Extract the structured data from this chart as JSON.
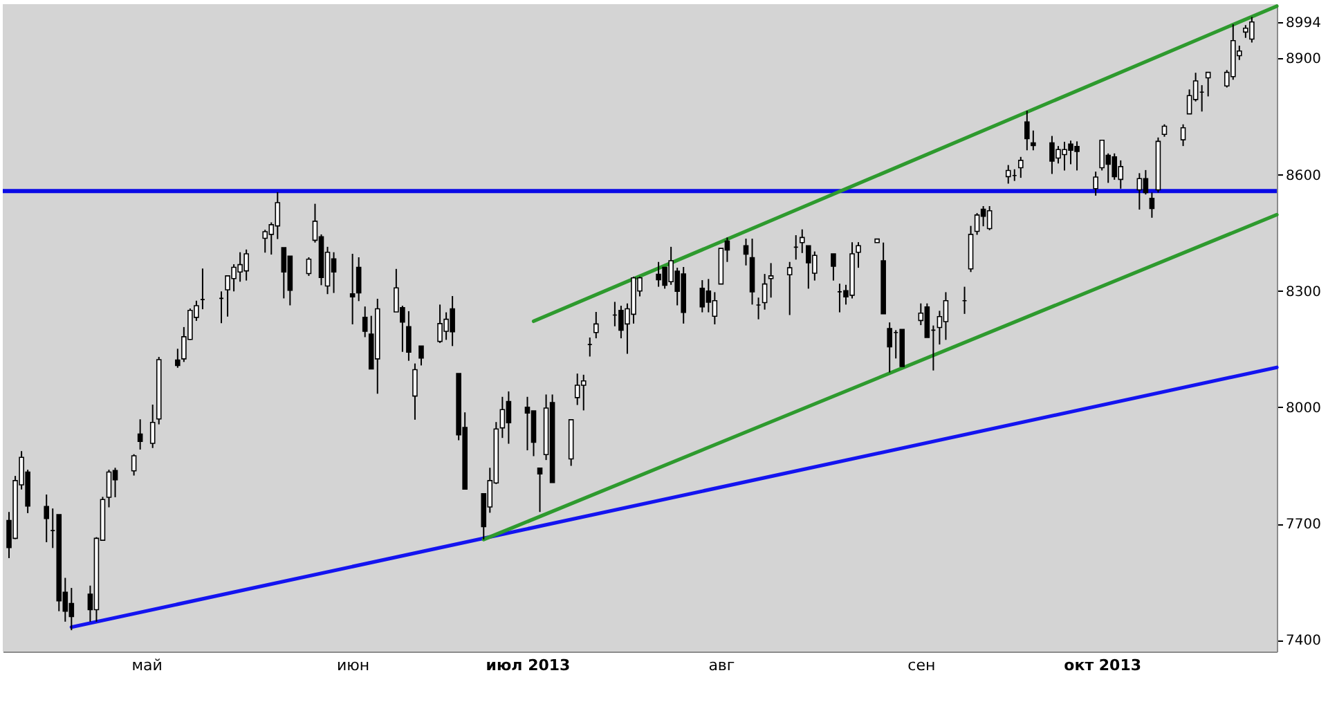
{
  "chart_data": {
    "type": "candlestick",
    "x": [
      "2013-04-09",
      "2013-04-10",
      "2013-04-11",
      "2013-04-12",
      "2013-04-15",
      "2013-04-16",
      "2013-04-17",
      "2013-04-18",
      "2013-04-19",
      "2013-04-22",
      "2013-04-23",
      "2013-04-24",
      "2013-04-25",
      "2013-04-26",
      "2013-04-29",
      "2013-04-30",
      "2013-05-02",
      "2013-05-03",
      "2013-05-06",
      "2013-05-07",
      "2013-05-08",
      "2013-05-09",
      "2013-05-10",
      "2013-05-13",
      "2013-05-14",
      "2013-05-15",
      "2013-05-16",
      "2013-05-17",
      "2013-05-20",
      "2013-05-21",
      "2013-05-22",
      "2013-05-23",
      "2013-05-24",
      "2013-05-27",
      "2013-05-28",
      "2013-05-29",
      "2013-05-30",
      "2013-05-31",
      "2013-06-03",
      "2013-06-04",
      "2013-06-05",
      "2013-06-06",
      "2013-06-07",
      "2013-06-10",
      "2013-06-11",
      "2013-06-12",
      "2013-06-13",
      "2013-06-14",
      "2013-06-17",
      "2013-06-18",
      "2013-06-19",
      "2013-06-20",
      "2013-06-21",
      "2013-06-24",
      "2013-06-25",
      "2013-06-26",
      "2013-06-27",
      "2013-06-28",
      "2013-07-01",
      "2013-07-02",
      "2013-07-03",
      "2013-07-04",
      "2013-07-05",
      "2013-07-08",
      "2013-07-09",
      "2013-07-10",
      "2013-07-11",
      "2013-07-12",
      "2013-07-15",
      "2013-07-16",
      "2013-07-17",
      "2013-07-18",
      "2013-07-19",
      "2013-07-22",
      "2013-07-23",
      "2013-07-24",
      "2013-07-25",
      "2013-07-26",
      "2013-07-29",
      "2013-07-30",
      "2013-07-31",
      "2013-08-01",
      "2013-08-02",
      "2013-08-05",
      "2013-08-06",
      "2013-08-07",
      "2013-08-08",
      "2013-08-09",
      "2013-08-12",
      "2013-08-13",
      "2013-08-14",
      "2013-08-15",
      "2013-08-16",
      "2013-08-19",
      "2013-08-20",
      "2013-08-21",
      "2013-08-22",
      "2013-08-23",
      "2013-08-26",
      "2013-08-27",
      "2013-08-28",
      "2013-08-29",
      "2013-08-30",
      "2013-09-02",
      "2013-09-03",
      "2013-09-04",
      "2013-09-05",
      "2013-09-06",
      "2013-09-09",
      "2013-09-10",
      "2013-09-11",
      "2013-09-12",
      "2013-09-13",
      "2013-09-16",
      "2013-09-17",
      "2013-09-18",
      "2013-09-19",
      "2013-09-20",
      "2013-09-23",
      "2013-09-24",
      "2013-09-25",
      "2013-09-26",
      "2013-09-27",
      "2013-09-30",
      "2013-10-01",
      "2013-10-02",
      "2013-10-03",
      "2013-10-04",
      "2013-10-07",
      "2013-10-08",
      "2013-10-09",
      "2013-10-10",
      "2013-10-11",
      "2013-10-14",
      "2013-10-15",
      "2013-10-16",
      "2013-10-17",
      "2013-10-18",
      "2013-10-21",
      "2013-10-22",
      "2013-10-23",
      "2013-10-24",
      "2013-10-25"
    ],
    "ohlc": [
      [
        7708,
        7730,
        7611,
        7638
      ],
      [
        7662,
        7823,
        7660,
        7811
      ],
      [
        7800,
        7887,
        7788,
        7871
      ],
      [
        7833,
        7839,
        7727,
        7745
      ],
      [
        7744,
        7775,
        7652,
        7713
      ],
      [
        7682,
        7739,
        7637,
        7682
      ],
      [
        7723,
        7723,
        7474,
        7501
      ],
      [
        7523,
        7560,
        7447,
        7474
      ],
      [
        7494,
        7534,
        7425,
        7460
      ],
      [
        7518,
        7540,
        7447,
        7478
      ],
      [
        7478,
        7665,
        7447,
        7662
      ],
      [
        7657,
        7769,
        7657,
        7762
      ],
      [
        7768,
        7839,
        7742,
        7833
      ],
      [
        7837,
        7844,
        7768,
        7813
      ],
      [
        7836,
        7879,
        7824,
        7875
      ],
      [
        7931,
        7969,
        7891,
        7912
      ],
      [
        7907,
        8007,
        7895,
        7961
      ],
      [
        7970,
        8130,
        7956,
        8123
      ],
      [
        8122,
        8151,
        8102,
        8108
      ],
      [
        8125,
        8207,
        8117,
        8182
      ],
      [
        8175,
        8255,
        8174,
        8250
      ],
      [
        8232,
        8275,
        8223,
        8262
      ],
      [
        8278,
        8358,
        8253,
        8278
      ],
      [
        8281,
        8299,
        8217,
        8281
      ],
      [
        8303,
        8339,
        8234,
        8339
      ],
      [
        8332,
        8369,
        8299,
        8361
      ],
      [
        8349,
        8400,
        8324,
        8368
      ],
      [
        8352,
        8407,
        8327,
        8396
      ],
      [
        8436,
        8458,
        8399,
        8453
      ],
      [
        8446,
        8477,
        8394,
        8471
      ],
      [
        8468,
        8555,
        8434,
        8528
      ],
      [
        8412,
        8412,
        8281,
        8349
      ],
      [
        8390,
        8390,
        8263,
        8302
      ],
      [
        8345,
        8387,
        8339,
        8382
      ],
      [
        8431,
        8525,
        8425,
        8480
      ],
      [
        8440,
        8446,
        8315,
        8335
      ],
      [
        8313,
        8414,
        8292,
        8400
      ],
      [
        8383,
        8400,
        8295,
        8349
      ],
      [
        8293,
        8396,
        8214,
        8285
      ],
      [
        8361,
        8387,
        8274,
        8295
      ],
      [
        8232,
        8260,
        8181,
        8196
      ],
      [
        8189,
        8236,
        8099,
        8099
      ],
      [
        8125,
        8280,
        8035,
        8254
      ],
      [
        8246,
        8357,
        8246,
        8308
      ],
      [
        8257,
        8262,
        8143,
        8220
      ],
      [
        8208,
        8248,
        8120,
        8142
      ],
      [
        8029,
        8113,
        7968,
        8097
      ],
      [
        8158,
        8158,
        8108,
        8127
      ],
      [
        8170,
        8265,
        8166,
        8216
      ],
      [
        8196,
        8245,
        8174,
        8227
      ],
      [
        8254,
        8287,
        8158,
        8195
      ],
      [
        8087,
        8087,
        7915,
        7929
      ],
      [
        7948,
        7987,
        7789,
        7789
      ],
      [
        7777,
        7777,
        7659,
        7692
      ],
      [
        7743,
        7844,
        7728,
        7811
      ],
      [
        7805,
        7962,
        7802,
        7944
      ],
      [
        7947,
        8027,
        7921,
        7994
      ],
      [
        8015,
        8041,
        7906,
        7960
      ],
      [
        8000,
        8027,
        7889,
        7985
      ],
      [
        7991,
        7991,
        7874,
        7910
      ],
      [
        7843,
        7843,
        7730,
        7828
      ],
      [
        7878,
        8033,
        7864,
        7998
      ],
      [
        8012,
        8033,
        7806,
        7806
      ],
      [
        7867,
        7968,
        7849,
        7968
      ],
      [
        8025,
        8087,
        8006,
        8057
      ],
      [
        8057,
        8084,
        7992,
        8068
      ],
      [
        8162,
        8180,
        8131,
        8162
      ],
      [
        8193,
        8246,
        8178,
        8215
      ],
      [
        8238,
        8272,
        8209,
        8238
      ],
      [
        8250,
        8262,
        8178,
        8199
      ],
      [
        8215,
        8268,
        8138,
        8254
      ],
      [
        8240,
        8337,
        8216,
        8334
      ],
      [
        8300,
        8337,
        8286,
        8334
      ],
      [
        8343,
        8375,
        8311,
        8329
      ],
      [
        8361,
        8361,
        8306,
        8315
      ],
      [
        8324,
        8414,
        8316,
        8378
      ],
      [
        8351,
        8360,
        8263,
        8299
      ],
      [
        8344,
        8362,
        8216,
        8245
      ],
      [
        8307,
        8328,
        8245,
        8259
      ],
      [
        8300,
        8331,
        8245,
        8271
      ],
      [
        8235,
        8297,
        8214,
        8275
      ],
      [
        8318,
        8410,
        8318,
        8410
      ],
      [
        8429,
        8438,
        8375,
        8406
      ],
      [
        8417,
        8435,
        8366,
        8395
      ],
      [
        8386,
        8435,
        8265,
        8298
      ],
      [
        8264,
        8283,
        8227,
        8264
      ],
      [
        8270,
        8344,
        8252,
        8318
      ],
      [
        8332,
        8372,
        8283,
        8339
      ],
      [
        8342,
        8375,
        8238,
        8360
      ],
      [
        8413,
        8444,
        8381,
        8413
      ],
      [
        8425,
        8459,
        8398,
        8438
      ],
      [
        8417,
        8417,
        8306,
        8373
      ],
      [
        8346,
        8402,
        8327,
        8392
      ],
      [
        8396,
        8396,
        8327,
        8364
      ],
      [
        8298,
        8319,
        8245,
        8298
      ],
      [
        8301,
        8316,
        8265,
        8285
      ],
      [
        8289,
        8426,
        8281,
        8396
      ],
      [
        8400,
        8426,
        8360,
        8417
      ],
      [
        8425,
        8434,
        8425,
        8434
      ],
      [
        8378,
        8425,
        8241,
        8241
      ],
      [
        8203,
        8219,
        8090,
        8156
      ],
      [
        8193,
        8199,
        8126,
        8193
      ],
      [
        8201,
        8201,
        8105,
        8105
      ],
      [
        8224,
        8268,
        8212,
        8243
      ],
      [
        8259,
        8268,
        8180,
        8180
      ],
      [
        8199,
        8211,
        8095,
        8199
      ],
      [
        8206,
        8249,
        8162,
        8234
      ],
      [
        8221,
        8297,
        8174,
        8275
      ],
      [
        8275,
        8311,
        8241,
        8275
      ],
      [
        8357,
        8468,
        8349,
        8446
      ],
      [
        8454,
        8501,
        8445,
        8496
      ],
      [
        8511,
        8519,
        8467,
        8493
      ],
      [
        8461,
        8519,
        8457,
        8507
      ],
      [
        8595,
        8625,
        8577,
        8611
      ],
      [
        8598,
        8614,
        8584,
        8598
      ],
      [
        8618,
        8646,
        8592,
        8637
      ],
      [
        8736,
        8765,
        8663,
        8693
      ],
      [
        8682,
        8714,
        8663,
        8675
      ],
      [
        8682,
        8700,
        8602,
        8635
      ],
      [
        8643,
        8674,
        8629,
        8665
      ],
      [
        8652,
        8685,
        8611,
        8665
      ],
      [
        8679,
        8688,
        8627,
        8663
      ],
      [
        8673,
        8686,
        8611,
        8660
      ],
      [
        8564,
        8608,
        8546,
        8594
      ],
      [
        8618,
        8689,
        8611,
        8689
      ],
      [
        8650,
        8655,
        8579,
        8627
      ],
      [
        8646,
        8655,
        8587,
        8595
      ],
      [
        8588,
        8637,
        8564,
        8621
      ],
      [
        8561,
        8604,
        8510,
        8590
      ],
      [
        8590,
        8612,
        8549,
        8554
      ],
      [
        8539,
        8554,
        8489,
        8513
      ],
      [
        8561,
        8696,
        8554,
        8686
      ],
      [
        8704,
        8730,
        8698,
        8725
      ],
      [
        8690,
        8730,
        8674,
        8721
      ],
      [
        8757,
        8820,
        8757,
        8804
      ],
      [
        8794,
        8863,
        8789,
        8842
      ],
      [
        8813,
        8831,
        8763,
        8813
      ],
      [
        8850,
        8864,
        8802,
        8864
      ],
      [
        8829,
        8870,
        8825,
        8864
      ],
      [
        8853,
        8988,
        8845,
        8946
      ],
      [
        8907,
        8933,
        8896,
        8919
      ],
      [
        8968,
        8986,
        8953,
        8978
      ],
      [
        8950,
        9007,
        8941,
        8994
      ]
    ],
    "series": [
      {
        "type": "line",
        "x": [
          "2013-04-19",
          "2013-10-29"
        ],
        "values": [
          7433,
          8103
        ],
        "color": "#1414f0"
      },
      {
        "type": "line",
        "x": [
          "2013-06-24",
          "2013-10-29"
        ],
        "values": [
          7659,
          8497
        ],
        "color": "#2e9a2e"
      },
      {
        "type": "line",
        "x": [
          "2013-07-02",
          "2013-10-29"
        ],
        "values": [
          8222,
          9035
        ],
        "color": "#2e9a2e"
      }
    ],
    "ref_lines": [
      {
        "axis": "y",
        "value": 8558,
        "color": "#0a0ae6"
      }
    ],
    "xlim": [
      "2013-04-08",
      "2013-10-29"
    ],
    "xticks": [
      {
        "value": "2013-05-01",
        "label": "май"
      },
      {
        "value": "2013-06-03",
        "label": "июн"
      },
      {
        "value": "2013-07-01",
        "label": "июл 2013"
      },
      {
        "value": "2013-08-01",
        "label": "авг"
      },
      {
        "value": "2013-09-02",
        "label": "сен"
      },
      {
        "value": "2013-10-01",
        "label": "окт 2013"
      }
    ],
    "ylim": [
      7370,
      9040
    ],
    "yticks": [
      7400,
      7700,
      8000,
      8300,
      8600,
      8900,
      8994
    ],
    "grid": false
  }
}
